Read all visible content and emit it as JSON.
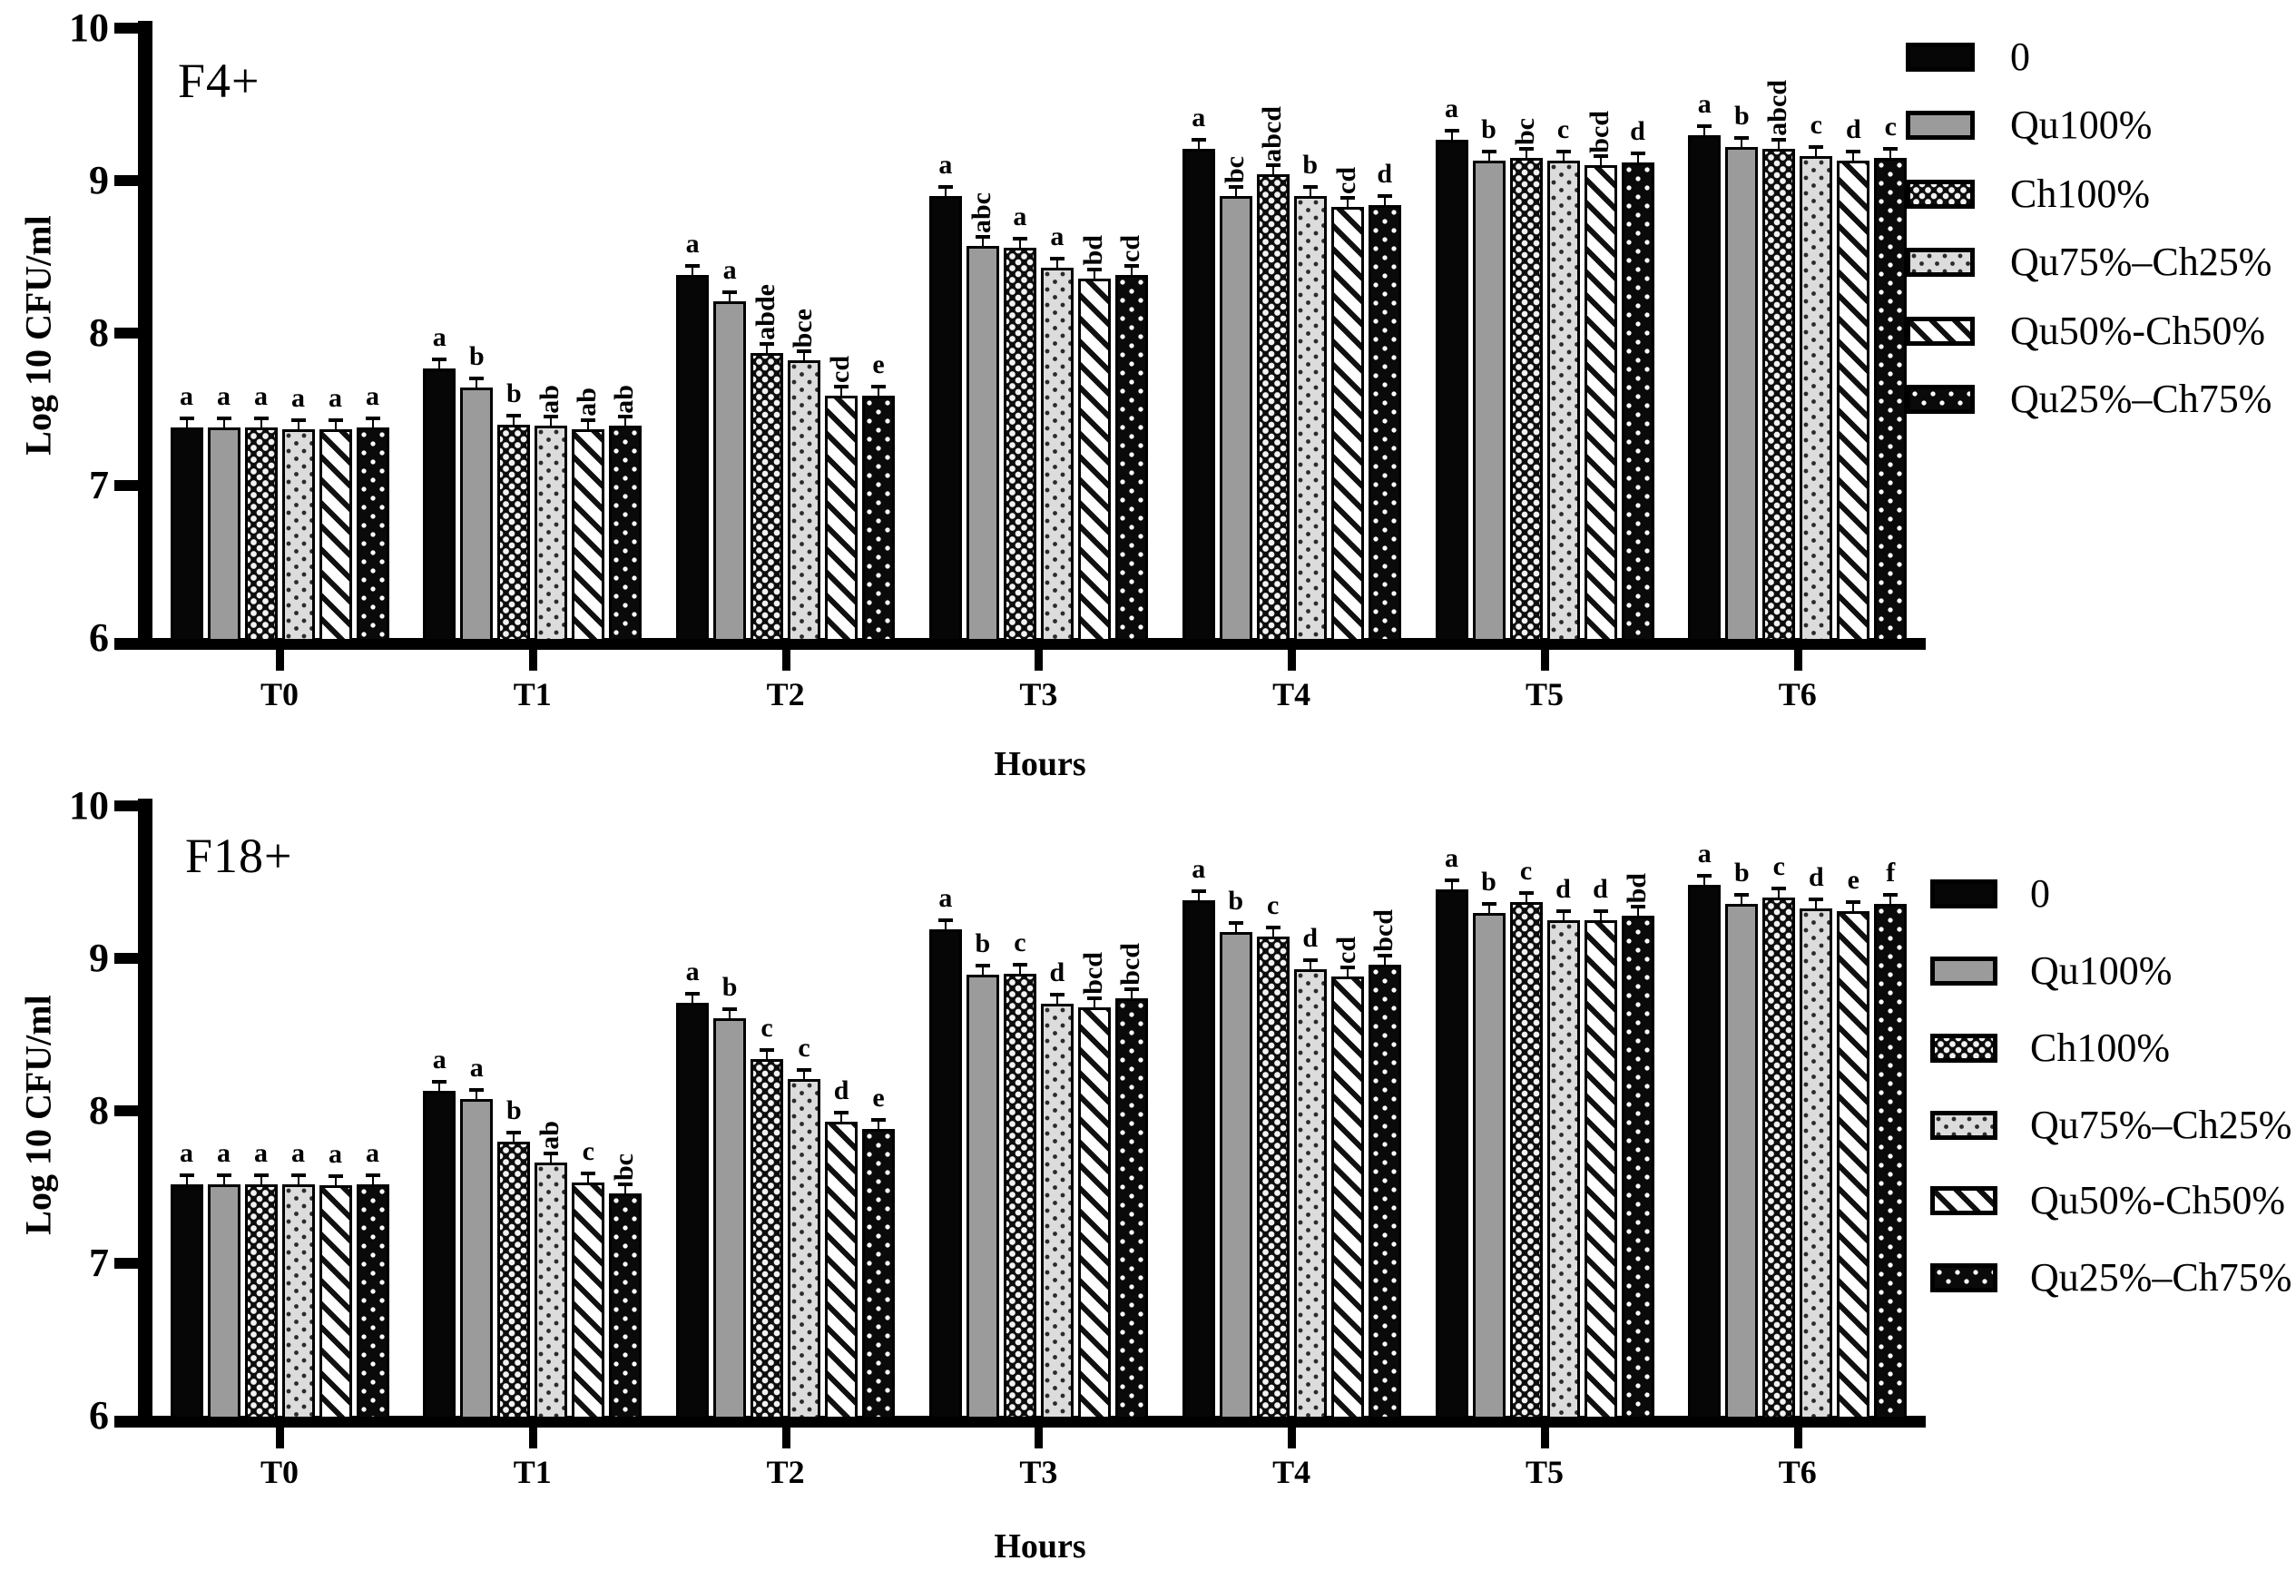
{
  "figure_colors": {
    "foreground": "#000000",
    "background": "#ffffff",
    "gray_fill": "#9b9b9b",
    "light_fill": "#dcdcdc"
  },
  "legend": {
    "items": [
      {
        "label": "0",
        "pattern": "p-solid",
        "swatch_icon": "solid-black-bar"
      },
      {
        "label": "Qu100%",
        "pattern": "p-gray",
        "swatch_icon": "gray-bar"
      },
      {
        "label": "Ch100%",
        "pattern": "p-checker",
        "swatch_icon": "checkerboard-bar"
      },
      {
        "label": "Qu75%–Ch25%",
        "pattern": "p-lightdot",
        "swatch_icon": "light-dotted-bar"
      },
      {
        "label": "Qu50%-Ch50%",
        "pattern": "p-diag",
        "swatch_icon": "diagonal-striped-bar"
      },
      {
        "label": "Qu25%–Ch75%",
        "pattern": "p-blackdot",
        "swatch_icon": "black-dotted-bar"
      }
    ]
  },
  "chart_data": [
    {
      "type": "bar",
      "title": "F4+",
      "xlabel": "Hours",
      "ylabel": "Log 10 CFU/ml",
      "ylim": [
        6,
        10
      ],
      "yticks": [
        6,
        7,
        8,
        9,
        10
      ],
      "grid": false,
      "legend_position": "right",
      "categories": [
        "T0",
        "T1",
        "T2",
        "T3",
        "T4",
        "T5",
        "T6"
      ],
      "series": [
        {
          "name": "0",
          "pattern": "p-solid",
          "values": [
            7.38,
            7.77,
            8.38,
            8.9,
            9.21,
            9.27,
            9.3
          ],
          "letters": [
            "a",
            "a",
            "a",
            "a",
            "a",
            "a",
            "a"
          ]
        },
        {
          "name": "Qu100%",
          "pattern": "p-gray",
          "values": [
            7.38,
            7.64,
            8.21,
            8.57,
            8.9,
            9.13,
            9.22
          ],
          "letters": [
            "a",
            "b",
            "a",
            "abc",
            "bc",
            "b",
            "b"
          ]
        },
        {
          "name": "Ch100%",
          "pattern": "p-checker",
          "values": [
            7.38,
            7.4,
            7.87,
            8.56,
            9.04,
            9.15,
            9.21
          ],
          "letters": [
            "a",
            "b",
            "abde",
            "a",
            "abcd",
            "bc",
            "abcd"
          ]
        },
        {
          "name": "Qu75%–Ch25%",
          "pattern": "p-lightdot",
          "values": [
            7.37,
            7.39,
            7.82,
            8.43,
            8.9,
            9.13,
            9.16
          ],
          "letters": [
            "a",
            "ab",
            "bce",
            "a",
            "b",
            "c",
            "c"
          ]
        },
        {
          "name": "Qu50%-Ch50%",
          "pattern": "p-diag",
          "values": [
            7.37,
            7.37,
            7.59,
            8.36,
            8.83,
            9.1,
            9.13
          ],
          "letters": [
            "a",
            "ab",
            "cd",
            "bd",
            "cd",
            "bcd",
            "d"
          ]
        },
        {
          "name": "Qu25%–Ch75%",
          "pattern": "p-blackdot",
          "values": [
            7.38,
            7.39,
            7.59,
            8.38,
            8.84,
            9.12,
            9.15
          ],
          "letters": [
            "a",
            "ab",
            "e",
            "cd",
            "d",
            "d",
            "c"
          ]
        }
      ]
    },
    {
      "type": "bar",
      "title": "F18+",
      "xlabel": "Hours",
      "ylabel": "Log 10 CFU/ml",
      "ylim": [
        6,
        10
      ],
      "yticks": [
        6,
        7,
        8,
        9,
        10
      ],
      "grid": false,
      "legend_position": "right",
      "categories": [
        "T0",
        "T1",
        "T2",
        "T3",
        "T4",
        "T5",
        "T6"
      ],
      "series": [
        {
          "name": "0",
          "pattern": "p-solid",
          "values": [
            7.52,
            8.13,
            8.71,
            9.19,
            9.38,
            9.45,
            9.48
          ],
          "letters": [
            "a",
            "a",
            "a",
            "a",
            "a",
            "a",
            "a"
          ]
        },
        {
          "name": "Qu100%",
          "pattern": "p-gray",
          "values": [
            7.52,
            8.08,
            8.61,
            8.89,
            9.17,
            9.3,
            9.36
          ],
          "letters": [
            "a",
            "a",
            "b",
            "b",
            "b",
            "b",
            "b"
          ]
        },
        {
          "name": "Ch100%",
          "pattern": "p-checker",
          "values": [
            7.52,
            7.8,
            8.34,
            8.9,
            9.14,
            9.37,
            9.4
          ],
          "letters": [
            "a",
            "b",
            "c",
            "c",
            "c",
            "c",
            "c"
          ]
        },
        {
          "name": "Qu75%–Ch25%",
          "pattern": "p-lightdot",
          "values": [
            7.52,
            7.66,
            8.21,
            8.7,
            8.93,
            9.25,
            9.33
          ],
          "letters": [
            "a",
            "ab",
            "c",
            "d",
            "d",
            "d",
            "d"
          ]
        },
        {
          "name": "Qu50%-Ch50%",
          "pattern": "p-diag",
          "values": [
            7.51,
            7.53,
            7.93,
            8.68,
            8.88,
            9.25,
            9.31
          ],
          "letters": [
            "a",
            "c",
            "d",
            "bcd",
            "cd",
            "d",
            "e"
          ]
        },
        {
          "name": "Qu25%–Ch75%",
          "pattern": "p-blackdot",
          "values": [
            7.52,
            7.46,
            7.88,
            8.74,
            8.96,
            9.28,
            9.36
          ],
          "letters": [
            "a",
            "bc",
            "e",
            "bcd",
            "bcd",
            "bd",
            "f"
          ]
        }
      ]
    }
  ]
}
